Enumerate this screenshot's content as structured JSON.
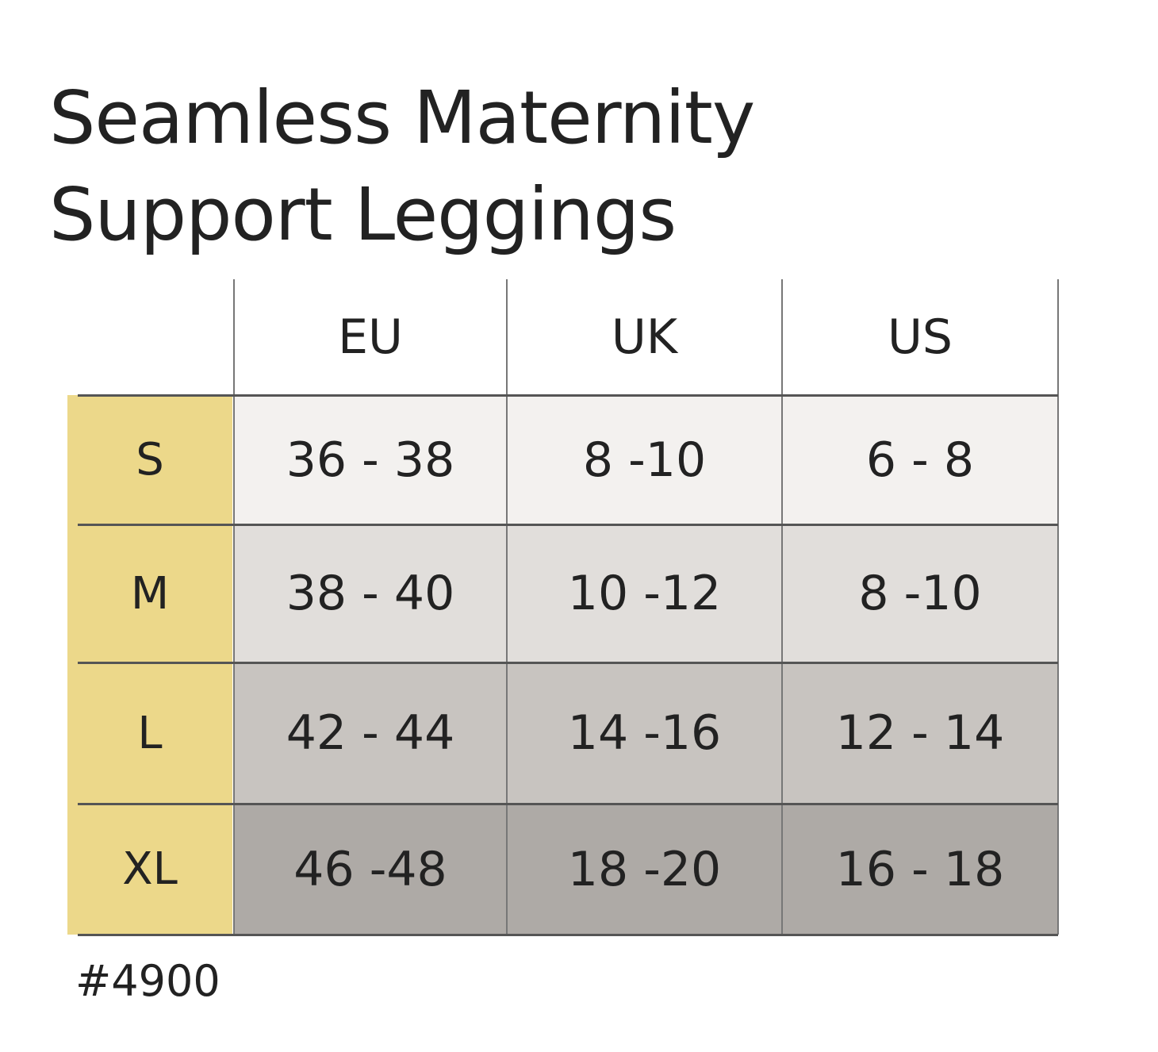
{
  "title": {
    "line1": "Seamless Maternity",
    "line2": "Support Leggings"
  },
  "table": {
    "columns": [
      "EU",
      "UK",
      "US"
    ],
    "rows": [
      {
        "size": "S",
        "values": [
          "36 - 38",
          "8 -10",
          "6 - 8"
        ]
      },
      {
        "size": "M",
        "values": [
          "38 - 40",
          "10 -12",
          "8 -10"
        ]
      },
      {
        "size": "L",
        "values": [
          "42 - 44",
          "14 -16",
          "12 - 14"
        ]
      },
      {
        "size": "XL",
        "values": [
          "46 -48",
          "18 -20",
          "16 - 18"
        ]
      }
    ]
  },
  "footer": {
    "code": "#4900"
  },
  "colors": {
    "size_column": "#ecd88a",
    "row_s": "#f3f1ef",
    "row_m": "#e1dedb",
    "row_l": "#c8c4c0",
    "row_xl": "#aeaaa6",
    "text": "#222222"
  }
}
